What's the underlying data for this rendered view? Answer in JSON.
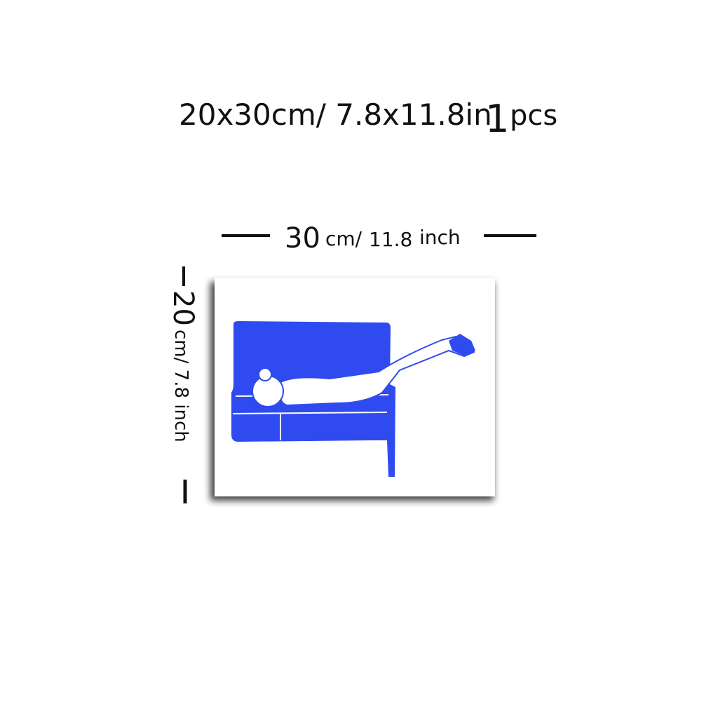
{
  "header": {
    "size": "20x30cm/ 7.8x11.8in",
    "quantity": "1",
    "unit": "pcs"
  },
  "width_label": {
    "value": "30",
    "unit": "cm/",
    "inch_value": "11.8",
    "inch_unit": "inch"
  },
  "height_label": {
    "value": "20",
    "rest": "cm/ 7.8 inch"
  }
}
